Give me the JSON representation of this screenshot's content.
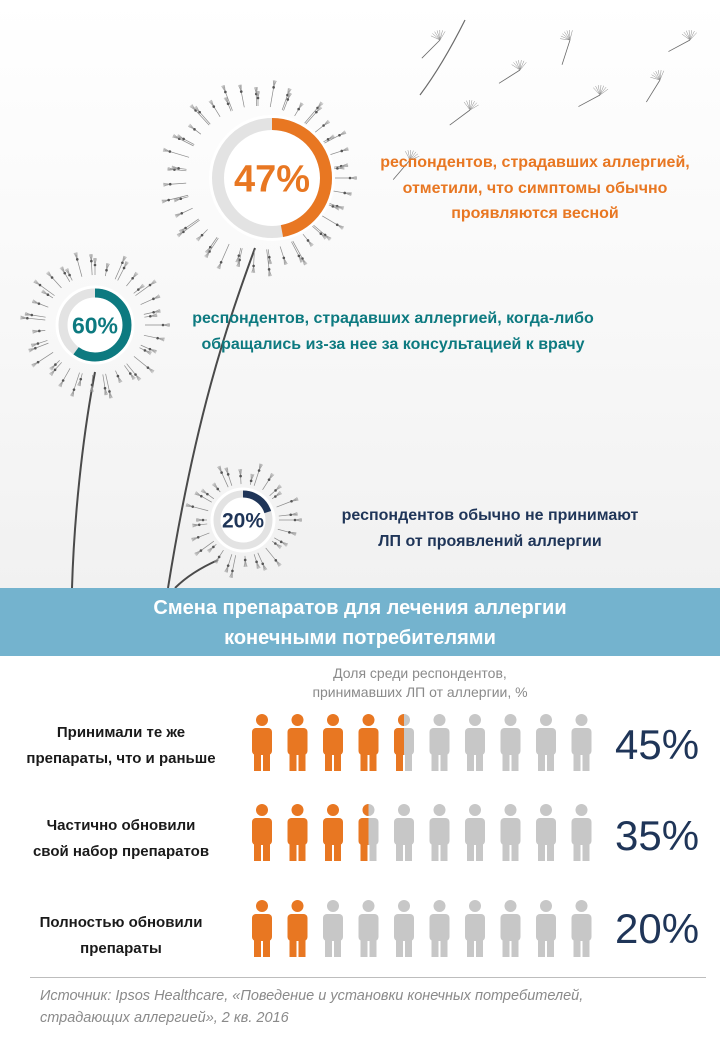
{
  "stats": [
    {
      "percent_label": "47%",
      "value": 47,
      "color": "#e87722",
      "line1": "респондентов, страдавших аллергией,",
      "line2": "отметили, что симптомы обычно",
      "line3": "проявляются весной"
    },
    {
      "percent_label": "60%",
      "value": 60,
      "color": "#0d7a80",
      "line1": "респондентов,  страдавших аллергией, когда-либо",
      "line2": "обращались  из-за нее за консультацией  к врачу"
    },
    {
      "percent_label": "20%",
      "value": 20,
      "color": "#1f3558",
      "line1": "респондентов  обычно  не принимают",
      "line2": "ЛП от проявлений  аллергии"
    }
  ],
  "band": {
    "line1": "Смена препаратов для лечения аллергии",
    "line2": "конечными потребителями"
  },
  "subtitle": {
    "line1": "Доля среди респондентов,",
    "line2": "принимавших ЛП от аллергии, %"
  },
  "chart_data": {
    "type": "bar",
    "unit": "%",
    "categories": [
      "Принимали те же препараты, что и раньше",
      "Частично обновили свой набор препаратов",
      "Полностью обновили препараты"
    ],
    "values": [
      45,
      35,
      20
    ],
    "value_labels": [
      "45%",
      "35%",
      "20%"
    ],
    "colors": {
      "filled": "#e87722",
      "empty": "#c7c7c7"
    }
  },
  "rows": [
    {
      "label_line1": "Принимали те же",
      "label_line2": "препараты, что и раньше",
      "value_label": "45%"
    },
    {
      "label_line1": "Частично обновили",
      "label_line2": "свой набор препаратов",
      "value_label": "35%"
    },
    {
      "label_line1": "Полностью обновили",
      "label_line2": "препараты",
      "value_label": "20%"
    }
  ],
  "source": {
    "line1": "Источник: Ipsos Healthcare, «Поведение и установки конечных потребителей,",
    "line2": "страдающих аллергией», 2 кв. 2016"
  }
}
